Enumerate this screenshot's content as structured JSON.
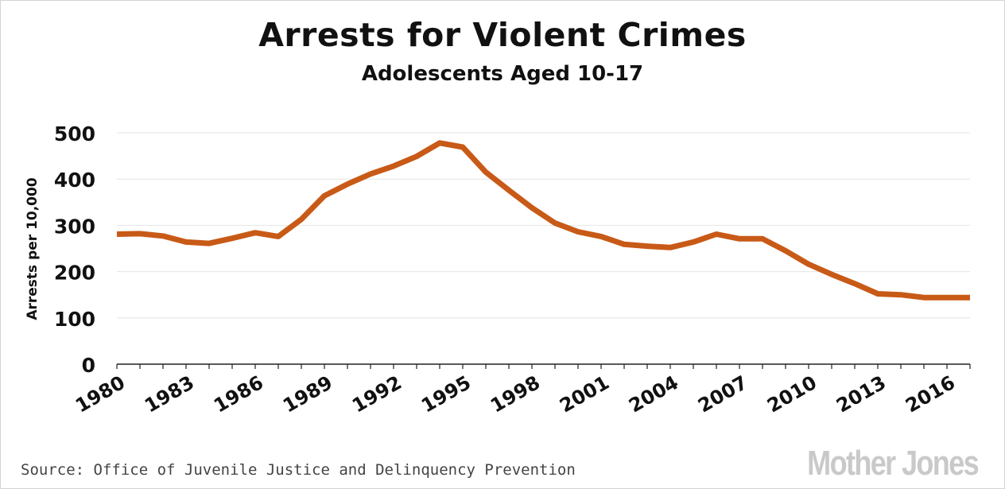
{
  "title": "Arrests for Violent Crimes",
  "subtitle": "Adolescents Aged 10-17",
  "source": "Source: Office of Juvenile Justice and Delinquency Prevention",
  "logo_text": "Mother Jones",
  "colors": {
    "line": "#c85a17",
    "grid": "#e4e4e4",
    "axis": "#222222"
  },
  "chart_data": {
    "type": "line",
    "title": "Arrests for Violent Crimes",
    "subtitle": "Adolescents Aged 10-17",
    "ylabel": "Arrests per 10,000",
    "ylim": [
      0,
      500
    ],
    "yticks": [
      0,
      100,
      200,
      300,
      400,
      500
    ],
    "xlim": [
      1980,
      2017
    ],
    "xticks": [
      "1980",
      "1983",
      "1986",
      "1989",
      "1992",
      "1995",
      "1998",
      "2001",
      "2004",
      "2007",
      "2010",
      "2013",
      "2016"
    ],
    "grid": true,
    "x": [
      1980,
      1981,
      1982,
      1983,
      1984,
      1985,
      1986,
      1987,
      1988,
      1989,
      1990,
      1991,
      1992,
      1993,
      1994,
      1995,
      1996,
      1997,
      1998,
      1999,
      2000,
      2001,
      2002,
      2003,
      2004,
      2005,
      2006,
      2007,
      2008,
      2009,
      2010,
      2011,
      2012,
      2013,
      2014,
      2015,
      2016,
      2017
    ],
    "values": [
      281,
      282,
      277,
      264,
      261,
      272,
      284,
      276,
      313,
      364,
      389,
      411,
      428,
      449,
      478,
      469,
      415,
      376,
      338,
      305,
      286,
      276,
      259,
      255,
      252,
      264,
      281,
      271,
      271,
      245,
      216,
      194,
      174,
      152,
      150,
      144,
      144,
      144
    ]
  }
}
